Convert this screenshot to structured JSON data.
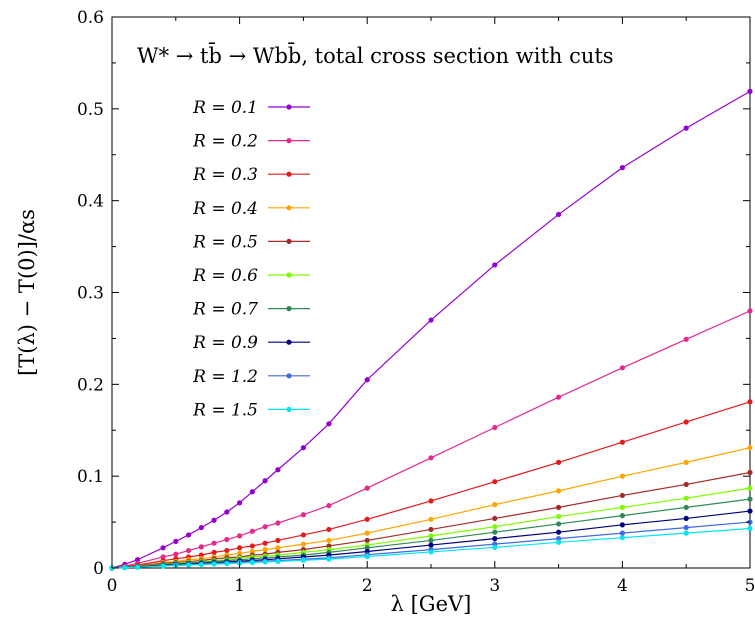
{
  "chart_data": {
    "type": "line",
    "title": "W* → tb̄ → Wbb̄, total cross section with cuts",
    "xlabel": "λ [GeV]",
    "ylabel": "[T(λ) − T(0)]/αs",
    "xlim": [
      0,
      5
    ],
    "ylim": [
      0,
      0.6
    ],
    "xticks": [
      0,
      1,
      2,
      3,
      4,
      5
    ],
    "yticks": [
      0,
      0.1,
      0.2,
      0.3,
      0.4,
      0.5,
      0.6
    ],
    "xtick_labels": [
      "0",
      "1",
      "2",
      "3",
      "4",
      "5"
    ],
    "ytick_labels": [
      "0",
      "0.1",
      "0.2",
      "0.3",
      "0.4",
      "0.5",
      "0.6"
    ],
    "grid": false,
    "legend_position": "top-left",
    "x": [
      0,
      0.1,
      0.2,
      0.4,
      0.5,
      0.6,
      0.7,
      0.8,
      0.9,
      1.0,
      1.1,
      1.2,
      1.3,
      1.5,
      1.7,
      2.0,
      2.5,
      3.0,
      3.5,
      4.0,
      4.5,
      5.0
    ],
    "series": [
      {
        "name": "R = 0.1",
        "color": "#9400d3",
        "values": [
          0,
          0.004,
          0.009,
          0.022,
          0.029,
          0.036,
          0.044,
          0.052,
          0.061,
          0.071,
          0.083,
          0.095,
          0.107,
          0.131,
          0.157,
          0.205,
          0.27,
          0.33,
          0.385,
          0.436,
          0.479,
          0.519
        ]
      },
      {
        "name": "R = 0.2",
        "color": "#e5298e",
        "values": [
          0,
          0.002,
          0.005,
          0.012,
          0.015,
          0.019,
          0.023,
          0.027,
          0.031,
          0.035,
          0.04,
          0.045,
          0.049,
          0.058,
          0.068,
          0.087,
          0.12,
          0.153,
          0.186,
          0.218,
          0.249,
          0.28
        ]
      },
      {
        "name": "R = 0.3",
        "color": "#e41a1c",
        "values": [
          0,
          0.0015,
          0.003,
          0.008,
          0.01,
          0.012,
          0.014,
          0.017,
          0.019,
          0.022,
          0.024,
          0.027,
          0.03,
          0.036,
          0.042,
          0.053,
          0.073,
          0.094,
          0.115,
          0.137,
          0.159,
          0.181
        ]
      },
      {
        "name": "R = 0.4",
        "color": "#ffa500",
        "values": [
          0,
          0.001,
          0.002,
          0.006,
          0.007,
          0.009,
          0.01,
          0.012,
          0.014,
          0.016,
          0.018,
          0.02,
          0.022,
          0.026,
          0.03,
          0.038,
          0.053,
          0.069,
          0.084,
          0.1,
          0.115,
          0.131
        ]
      },
      {
        "name": "R = 0.5",
        "color": "#a52a2a",
        "values": [
          0,
          0.0009,
          0.002,
          0.005,
          0.006,
          0.007,
          0.008,
          0.01,
          0.011,
          0.012,
          0.014,
          0.015,
          0.017,
          0.02,
          0.024,
          0.03,
          0.042,
          0.054,
          0.066,
          0.079,
          0.091,
          0.104
        ]
      },
      {
        "name": "R = 0.6",
        "color": "#7cfc00",
        "values": [
          0,
          0.0008,
          0.0017,
          0.004,
          0.005,
          0.006,
          0.007,
          0.008,
          0.009,
          0.011,
          0.012,
          0.013,
          0.014,
          0.017,
          0.02,
          0.025,
          0.035,
          0.045,
          0.056,
          0.066,
          0.076,
          0.087
        ]
      },
      {
        "name": "R = 0.7",
        "color": "#2e8b57",
        "values": [
          0,
          0.0007,
          0.0015,
          0.0035,
          0.0044,
          0.0053,
          0.0062,
          0.0071,
          0.008,
          0.009,
          0.01,
          0.011,
          0.012,
          0.014,
          0.017,
          0.022,
          0.03,
          0.039,
          0.048,
          0.057,
          0.066,
          0.075
        ]
      },
      {
        "name": "R = 0.9",
        "color": "#000080",
        "values": [
          0,
          0.0006,
          0.0012,
          0.003,
          0.0037,
          0.0044,
          0.0051,
          0.0058,
          0.0066,
          0.0074,
          0.0082,
          0.009,
          0.01,
          0.012,
          0.014,
          0.018,
          0.025,
          0.032,
          0.039,
          0.047,
          0.054,
          0.062
        ]
      },
      {
        "name": "R = 1.2",
        "color": "#4169e1",
        "values": [
          0,
          0.0005,
          0.001,
          0.0025,
          0.0031,
          0.0037,
          0.0043,
          0.0049,
          0.0055,
          0.0062,
          0.0068,
          0.0075,
          0.0081,
          0.0095,
          0.011,
          0.0145,
          0.02,
          0.026,
          0.032,
          0.038,
          0.044,
          0.05
        ]
      },
      {
        "name": "R = 1.5",
        "color": "#00e5ee",
        "values": [
          0,
          0.0004,
          0.0009,
          0.0022,
          0.0028,
          0.0033,
          0.0038,
          0.0043,
          0.0048,
          0.0054,
          0.006,
          0.0066,
          0.0072,
          0.0084,
          0.0097,
          0.0125,
          0.0175,
          0.0225,
          0.028,
          0.033,
          0.038,
          0.043
        ]
      }
    ]
  }
}
